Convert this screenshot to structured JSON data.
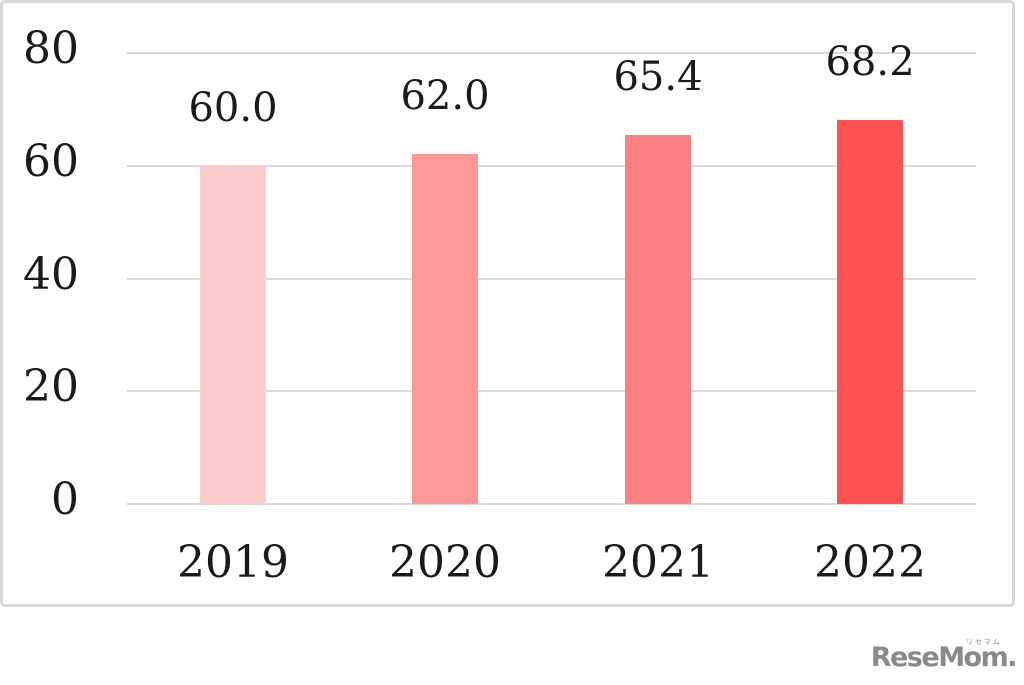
{
  "chart_data": {
    "type": "bar",
    "title": "",
    "xlabel": "",
    "ylabel": "",
    "categories": [
      "2019",
      "2020",
      "2021",
      "2022"
    ],
    "values": [
      60.0,
      62.0,
      65.4,
      68.2
    ],
    "value_labels": [
      "60.0",
      "62.0",
      "65.4",
      "68.2"
    ],
    "bar_colors": [
      "#fbcdcc",
      "#fd9899",
      "#fd8082",
      "#fb5254"
    ],
    "ylim": [
      0,
      80
    ],
    "yticks": [
      0,
      20,
      40,
      60,
      80
    ],
    "grid": true,
    "gridline_color": "#d9d9d9",
    "legend_position": "none",
    "text_color": "#1a1a1a",
    "frame_color": "#d8d8d8"
  },
  "watermark": {
    "logo_text": "ReseMom.",
    "logo_ruby": "リセマム",
    "logo_color": "#8a8a8a"
  }
}
